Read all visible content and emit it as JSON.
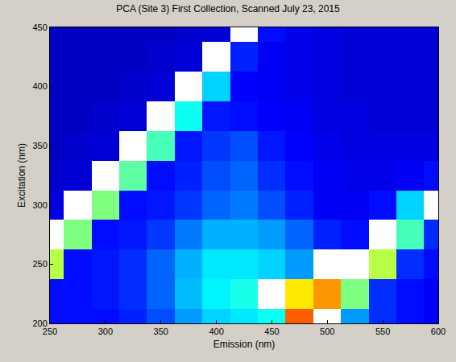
{
  "chart_data": {
    "type": "heatmap",
    "title": "PCA (Site 3) First Collection, Scanned July 23, 2015",
    "x_label": "Emission (nm)",
    "y_label": "Excitation (nm)",
    "x": [
      250,
      275,
      300,
      325,
      350,
      375,
      400,
      425,
      450,
      475,
      500,
      525,
      550,
      575,
      600
    ],
    "y": [
      200,
      225,
      250,
      275,
      300,
      325,
      350,
      375,
      400,
      425,
      450
    ],
    "cells": [
      [
        0.12,
        0.12,
        0.12,
        0.14,
        0.18,
        0.25,
        0.3,
        0.32,
        0.35,
        0.7,
        1,
        0.25,
        0.15,
        0.12,
        0.1
      ],
      [
        0.12,
        0.12,
        0.13,
        0.15,
        0.2,
        0.28,
        0.33,
        0.36,
        1,
        0.58,
        0.65,
        0.45,
        0.15,
        0.12,
        0.1
      ],
      [
        0.5,
        0.12,
        0.13,
        0.15,
        0.2,
        0.27,
        0.32,
        0.32,
        0.3,
        0.25,
        1,
        1,
        0.5,
        0.15,
        0.12
      ],
      [
        1,
        0.45,
        0.12,
        0.13,
        0.16,
        0.22,
        0.27,
        0.27,
        0.25,
        0.2,
        0.14,
        0.12,
        1,
        0.4,
        0.15
      ],
      [
        0.08,
        1,
        0.45,
        0.12,
        0.13,
        0.16,
        0.2,
        0.22,
        0.18,
        0.14,
        0.1,
        0.1,
        0.12,
        0.3,
        1
      ],
      [
        0.06,
        0.07,
        1,
        0.42,
        0.12,
        0.14,
        0.18,
        0.2,
        0.15,
        0.12,
        0.1,
        0.09,
        0.09,
        0.1,
        0.12
      ],
      [
        0.05,
        0.06,
        0.07,
        1,
        0.4,
        0.13,
        0.16,
        0.18,
        0.13,
        0.11,
        0.09,
        0.08,
        0.08,
        0.08,
        0.08
      ],
      [
        0.05,
        0.05,
        0.06,
        0.07,
        1,
        0.35,
        0.13,
        0.12,
        0.11,
        0.1,
        0.08,
        0.08,
        0.07,
        0.07,
        0.07
      ],
      [
        0.05,
        0.05,
        0.05,
        0.06,
        0.07,
        1,
        0.3,
        0.11,
        0.1,
        0.09,
        0.08,
        0.07,
        0.07,
        0.07,
        0.07
      ],
      [
        0.05,
        0.05,
        0.05,
        0.05,
        0.06,
        0.07,
        1,
        0.14,
        0.1,
        0.09,
        0.08,
        0.07,
        0.07,
        0.07,
        0.07
      ],
      [
        0.05,
        0.05,
        0.05,
        0.05,
        0.05,
        0.06,
        0.07,
        1,
        0.12,
        0.09,
        0.08,
        0.07,
        0.07,
        0.07,
        0.07
      ]
    ],
    "zlim": [
      0,
      1
    ],
    "xlim": [
      250,
      600
    ],
    "ylim": [
      200,
      450
    ],
    "xticks": [
      250,
      300,
      350,
      400,
      450,
      500,
      550,
      600
    ],
    "yticks": [
      200,
      250,
      300,
      350,
      400,
      450
    ],
    "grid": true
  }
}
